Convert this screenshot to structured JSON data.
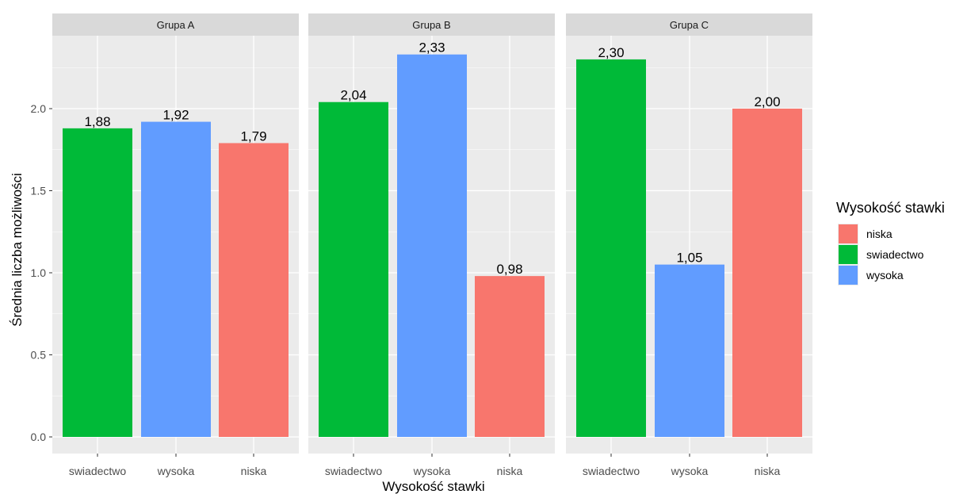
{
  "chart_data": {
    "type": "bar",
    "facet_variable": "group",
    "x_categories": [
      "swiadectwo",
      "wysoka",
      "niska"
    ],
    "xlabel": "Wysokość stawki",
    "ylabel": "Średnia liczba możliwości",
    "ylim": [
      0,
      2.42
    ],
    "y_ticks": [
      0.0,
      0.5,
      1.0,
      1.5,
      2.0
    ],
    "y_tick_labels": [
      "0.0",
      "0.5",
      "1.0",
      "1.5",
      "2.0"
    ],
    "grid": true,
    "panels": [
      {
        "title": "Grupa A",
        "values": [
          1.88,
          1.92,
          1.79
        ],
        "labels": [
          "1,88",
          "1,92",
          "1,79"
        ]
      },
      {
        "title": "Grupa B",
        "values": [
          2.04,
          2.33,
          0.98
        ],
        "labels": [
          "2,04",
          "2,33",
          "0,98"
        ]
      },
      {
        "title": "Grupa C",
        "values": [
          2.3,
          1.05,
          2.0
        ],
        "labels": [
          "2,30",
          "1,05",
          "2,00"
        ]
      }
    ],
    "legend": {
      "title": "Wysokość stawki",
      "placement": "right",
      "entries": [
        {
          "label": "niska",
          "color": "#F8766D"
        },
        {
          "label": "swiadectwo",
          "color": "#00BA38"
        },
        {
          "label": "wysoka",
          "color": "#619CFF"
        }
      ]
    },
    "colors": {
      "niska": "#F8766D",
      "swiadectwo": "#00BA38",
      "wysoka": "#619CFF",
      "panel_background": "#EBEBEB",
      "strip_background": "#D9D9D9"
    }
  }
}
